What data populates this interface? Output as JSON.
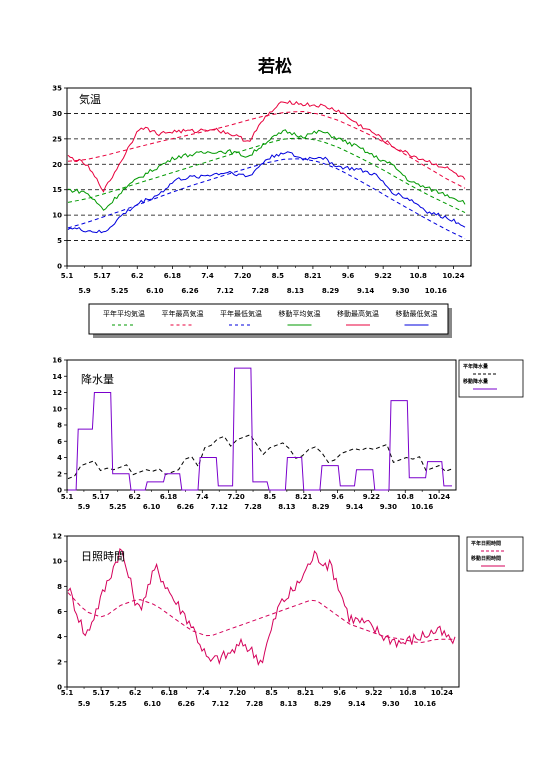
{
  "page": {
    "title": "若松"
  },
  "colors": {
    "avg": "#009900",
    "max": "#e8003c",
    "min": "#0000dd",
    "rain": "#7a00cc",
    "sun": "#d4005a",
    "ref": "#000000"
  },
  "chart_data": [
    {
      "type": "line",
      "title": "気温",
      "ylim": [
        0,
        35
      ],
      "yticks": [
        0,
        5,
        10,
        15,
        20,
        25,
        30,
        35
      ],
      "x_ticks_row1": [
        "5.1",
        "5.17",
        "6.2",
        "6.18",
        "7.4",
        "7.20",
        "8.5",
        "8.21",
        "9.6",
        "9.22",
        "10.8",
        "10.24"
      ],
      "x_ticks_row2": [
        "5.9",
        "5.25",
        "6.10",
        "6.26",
        "7.12",
        "7.28",
        "8.13",
        "8.29",
        "9.14",
        "9.30",
        "10.16"
      ],
      "legend_position": "bottom",
      "grid": "dashed horizontal",
      "legend": [
        "平年平均気温",
        "平年最高気温",
        "平年最低気温",
        "移動平均気温",
        "移動最高気温",
        "移動最低気温"
      ],
      "series": [
        {
          "name": "平年平均気温",
          "style": "dashed",
          "color_key": "avg",
          "values": [
            12.5,
            13.2,
            14.2,
            15.3,
            16.4,
            17.5,
            18.6,
            19.7,
            20.8,
            21.9,
            23.0,
            24.1,
            25.0,
            25.2,
            24.6,
            23.3,
            21.6,
            19.8,
            17.8,
            15.8,
            13.9,
            12.2,
            10.5
          ]
        },
        {
          "name": "平年最高気温",
          "style": "dashed",
          "color_key": "max",
          "values": [
            20.6,
            20.9,
            21.7,
            22.6,
            23.5,
            24.4,
            25.2,
            26.0,
            26.8,
            27.7,
            28.7,
            29.6,
            30.2,
            30.4,
            29.8,
            28.6,
            27.0,
            25.3,
            23.4,
            21.3,
            19.2,
            17.1,
            15.3
          ]
        },
        {
          "name": "平年最低気温",
          "style": "dashed",
          "color_key": "min",
          "values": [
            7.5,
            8.5,
            9.7,
            10.9,
            12.2,
            13.5,
            14.8,
            16.0,
            17.1,
            18.2,
            19.3,
            20.3,
            21.0,
            21.1,
            20.4,
            19.0,
            17.1,
            15.1,
            13.0,
            11.0,
            9.0,
            7.1,
            5.4
          ]
        },
        {
          "name": "移動平均気温",
          "style": "solid",
          "color_key": "avg",
          "values": [
            15.0,
            14.5,
            11.0,
            14.8,
            17.5,
            19.5,
            21.5,
            22.0,
            22.5,
            22.5,
            21.5,
            24.5,
            26.5,
            25.5,
            26.5,
            25.0,
            23.5,
            21.5,
            19.8,
            16.5,
            15.2,
            14.0,
            12.5
          ]
        },
        {
          "name": "移動最高気温",
          "style": "solid",
          "color_key": "max",
          "values": [
            21.5,
            20.0,
            14.8,
            21.0,
            27.5,
            26.0,
            26.5,
            26.5,
            27.0,
            26.0,
            24.5,
            29.5,
            32.5,
            31.8,
            31.5,
            30.5,
            28.0,
            26.0,
            23.5,
            21.8,
            20.5,
            19.2,
            17.0
          ]
        },
        {
          "name": "移動最低気温",
          "style": "solid",
          "color_key": "min",
          "values": [
            7.5,
            7.0,
            6.5,
            10.0,
            12.5,
            14.0,
            17.0,
            17.5,
            18.0,
            18.5,
            17.5,
            21.0,
            22.5,
            21.0,
            21.5,
            19.5,
            19.0,
            18.0,
            14.5,
            13.0,
            10.5,
            9.5,
            8.0
          ]
        }
      ]
    },
    {
      "type": "line",
      "title": "降水量",
      "ylim": [
        0,
        16
      ],
      "yticks": [
        0,
        2,
        4,
        6,
        8,
        10,
        12,
        14,
        16
      ],
      "x_ticks_row1": [
        "5.1",
        "5.17",
        "6.2",
        "6.18",
        "7.4",
        "7.20",
        "8.5",
        "8.21",
        "9.6",
        "9.22",
        "10.8",
        "10.24"
      ],
      "x_ticks_row2": [
        "5.9",
        "5.25",
        "6.10",
        "6.26",
        "7.12",
        "7.28",
        "8.13",
        "8.29",
        "9.14",
        "9.30",
        "10.16"
      ],
      "legend_position": "right",
      "legend": [
        "平年降水量",
        "移動降水量"
      ],
      "series": [
        {
          "name": "平年降水量",
          "style": "dashed",
          "color_key": "ref",
          "values": [
            2.0,
            3.0,
            3.0,
            2.5,
            2.5,
            2.0,
            2.5,
            3.5,
            5.5,
            6.0,
            6.5,
            5.0,
            5.5,
            4.5,
            5.0,
            4.0,
            4.5,
            5.5,
            5.0,
            4.0,
            3.5,
            3.0,
            2.0
          ]
        },
        {
          "name": "移動降水量",
          "style": "solid",
          "color_key": "rain",
          "values": [
            0.0,
            7.5,
            12.0,
            2.0,
            0.0,
            1.0,
            2.0,
            0.0,
            4.0,
            0.5,
            15.0,
            1.0,
            0.0,
            4.0,
            0.0,
            3.0,
            0.5,
            2.5,
            0.0,
            11.0,
            1.5,
            3.5,
            0.5
          ]
        }
      ]
    },
    {
      "type": "line",
      "title": "日照時間",
      "ylim": [
        0,
        12
      ],
      "yticks": [
        0,
        2,
        4,
        6,
        8,
        10,
        12
      ],
      "x_ticks_row1": [
        "5.1",
        "5.17",
        "6.2",
        "6.18",
        "7.4",
        "7.20",
        "8.5",
        "8.21",
        "9.6",
        "9.22",
        "10.8",
        "10.24"
      ],
      "x_ticks_row2": [
        "5.9",
        "5.25",
        "6.10",
        "6.26",
        "7.12",
        "7.28",
        "8.13",
        "8.29",
        "9.14",
        "9.30",
        "10.16"
      ],
      "legend_position": "right",
      "legend": [
        "平年日照時間",
        "移動日照時間"
      ],
      "series": [
        {
          "name": "平年日照時間",
          "style": "dashed",
          "color_key": "sun",
          "values": [
            7.5,
            6.0,
            5.5,
            6.5,
            7.0,
            6.5,
            5.5,
            4.5,
            4.0,
            4.5,
            5.0,
            5.5,
            6.0,
            6.5,
            7.0,
            6.0,
            5.0,
            4.5,
            4.0,
            3.8,
            3.5,
            3.8,
            3.8
          ]
        },
        {
          "name": "移動日照時間",
          "style": "solid",
          "color_key": "sun",
          "values": [
            8.0,
            4.0,
            7.5,
            11.0,
            6.0,
            9.5,
            7.0,
            5.0,
            2.0,
            2.5,
            3.5,
            2.0,
            6.5,
            8.0,
            10.5,
            9.5,
            5.5,
            5.0,
            4.0,
            3.5,
            4.0,
            4.5,
            3.5
          ]
        }
      ]
    }
  ]
}
